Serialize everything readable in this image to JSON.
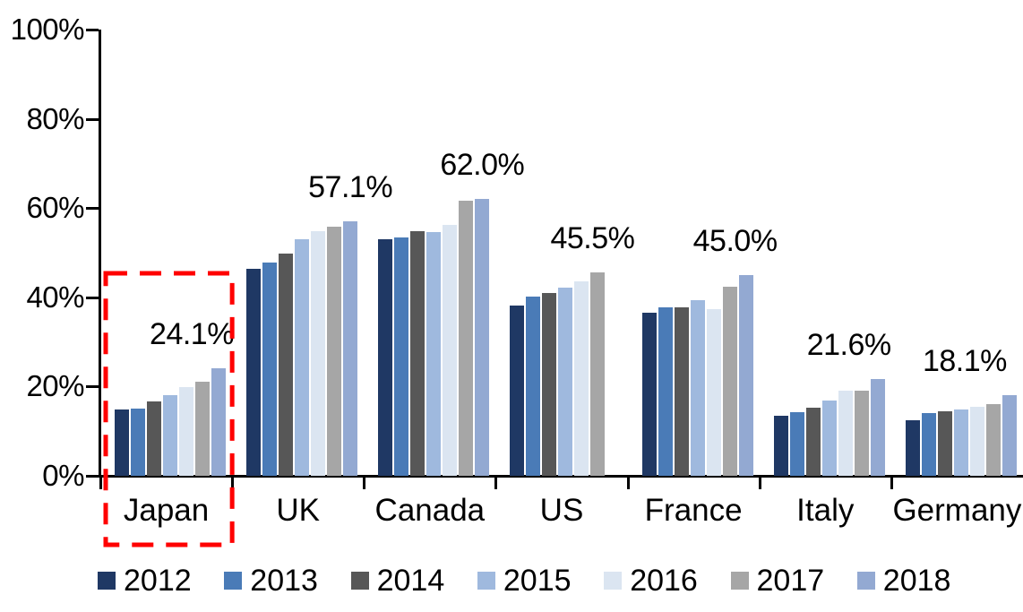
{
  "chart_data": {
    "type": "bar",
    "title": "",
    "unit": "%",
    "categories": [
      "Japan",
      "UK",
      "Canada",
      "US",
      "France",
      "Italy",
      "Germany"
    ],
    "series": [
      {
        "name": "2012",
        "color": "#1F3864",
        "values": [
          14.9,
          46.4,
          53.0,
          38.2,
          36.6,
          13.5,
          12.5
        ]
      },
      {
        "name": "2013",
        "color": "#4A7BB7",
        "values": [
          15.1,
          47.9,
          53.5,
          40.1,
          37.7,
          14.3,
          14.0
        ]
      },
      {
        "name": "2014",
        "color": "#575757",
        "values": [
          16.7,
          49.9,
          54.9,
          41.0,
          37.7,
          15.3,
          14.5
        ]
      },
      {
        "name": "2015",
        "color": "#9FB9DE",
        "values": [
          18.1,
          53.1,
          54.7,
          42.1,
          39.3,
          16.9,
          14.9
        ]
      },
      {
        "name": "2016",
        "color": "#DBE5F1",
        "values": [
          19.9,
          54.9,
          56.3,
          43.5,
          37.4,
          19.1,
          15.5
        ]
      },
      {
        "name": "2017",
        "color": "#A6A6A6",
        "values": [
          21.1,
          55.9,
          61.7,
          45.5,
          42.4,
          19.1,
          16.1
        ]
      },
      {
        "name": "2018",
        "color": "#93A9D2",
        "values": [
          24.1,
          57.1,
          62.0,
          null,
          45.0,
          21.6,
          18.1
        ]
      }
    ],
    "data_labels": [
      "24.1%",
      "57.1%",
      "62.0%",
      "45.5%",
      "45.0%",
      "21.6%",
      "18.1%"
    ],
    "ylim": [
      0,
      100
    ],
    "yticks": [
      {
        "value": 0,
        "label": "0%"
      },
      {
        "value": 20,
        "label": "20%"
      },
      {
        "value": 40,
        "label": "40%"
      },
      {
        "value": 60,
        "label": "60%"
      },
      {
        "value": 80,
        "label": "80%"
      },
      {
        "value": 100,
        "label": "100%"
      }
    ],
    "grid": false,
    "legend_position": "bottom",
    "legend_entries": [
      "2012",
      "2013",
      "2014",
      "2015",
      "2016",
      "2017",
      "2018"
    ],
    "highlight": {
      "category": "Japan",
      "style": "red-dashed-rectangle",
      "color": "#FF0000"
    }
  }
}
